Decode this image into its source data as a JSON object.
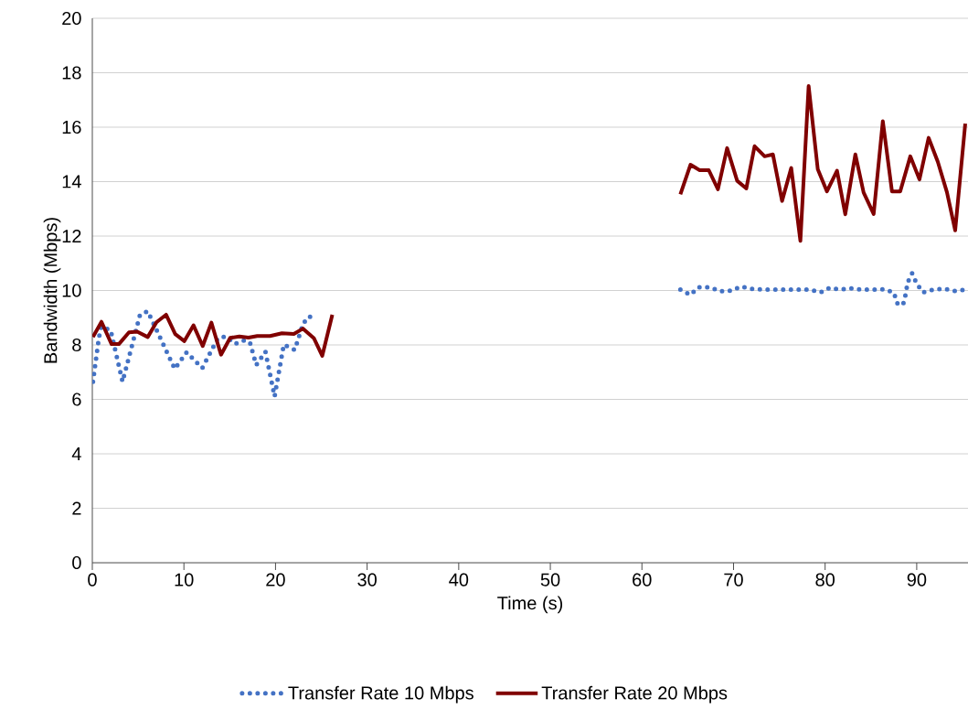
{
  "chart_data": {
    "type": "line",
    "xlabel": "Time (s)",
    "ylabel": "Bandwidth (Mbps)",
    "xlim": [
      0,
      95.6
    ],
    "ylim": [
      0,
      20
    ],
    "xticks": [
      0,
      10,
      20,
      30,
      40,
      50,
      60,
      70,
      80,
      90
    ],
    "yticks": [
      0,
      2,
      4,
      6,
      8,
      10,
      12,
      14,
      16,
      18,
      20
    ],
    "grid": "y",
    "legend": "bottom",
    "series": [
      {
        "name": "Transfer Rate 10 Mbps",
        "color": "#4472c4",
        "line_style": "dotted",
        "x": [
          0.07,
          0.73,
          1.0,
          2.0,
          3.3,
          5.2,
          6.05,
          9.0,
          10.3,
          12.0,
          13.7,
          14.6,
          15.6,
          16.5,
          17.2,
          17.9,
          18.9,
          19.9,
          20.9,
          22.1,
          22.9,
          23.4,
          24.4,
          44,
          64.2,
          65.3,
          66.2,
          67.4,
          68.6,
          69.7,
          70.8,
          72.0,
          73.3,
          74.5,
          75.8,
          77.0,
          78.3,
          79.5,
          80.5,
          81.6,
          82.8,
          84.0,
          85.3,
          86.5,
          87.5,
          87.9,
          88.5,
          88.8,
          89.0,
          89.5,
          90.0,
          90.7,
          91.8,
          93.0,
          94.2,
          95.4
        ],
        "values": [
          6.65,
          8.29,
          8.68,
          8.54,
          6.65,
          9.1,
          9.24,
          7.12,
          7.73,
          7.15,
          8.24,
          8.31,
          8.04,
          8.16,
          8.1,
          7.26,
          7.75,
          6.11,
          8.01,
          7.82,
          8.66,
          9.0,
          9.1,
          null,
          10.03,
          9.84,
          10.12,
          10.12,
          9.97,
          9.99,
          10.14,
          10.06,
          10.03,
          10.03,
          10.03,
          10.03,
          10.03,
          9.93,
          10.1,
          10.03,
          10.08,
          10.03,
          10.03,
          10.04,
          9.92,
          9.52,
          9.47,
          9.87,
          10.29,
          10.63,
          10.25,
          9.93,
          10.03,
          10.06,
          9.98,
          10.03
        ]
      },
      {
        "name": "Transfer Rate 20 Mbps",
        "color": "#800000",
        "line_style": "solid",
        "x": [
          0.07,
          1.0,
          2.1,
          2.9,
          4.0,
          4.9,
          6.05,
          7.0,
          8.05,
          9.05,
          10.05,
          11.05,
          12.05,
          13.0,
          14.05,
          15.05,
          16.05,
          17.05,
          18.0,
          19.4,
          20.7,
          22.0,
          23.0,
          24.2,
          25.1,
          26.2,
          45,
          64.2,
          65.3,
          66.3,
          67.3,
          68.3,
          69.3,
          70.4,
          71.4,
          72.3,
          73.4,
          74.3,
          75.3,
          76.3,
          77.3,
          78.2,
          79.2,
          80.2,
          81.3,
          82.2,
          83.3,
          84.2,
          85.3,
          86.3,
          87.3,
          88.2,
          89.3,
          90.3,
          91.3,
          92.3,
          93.3,
          94.2,
          95.3
        ],
        "values": [
          8.29,
          8.85,
          8.03,
          8.03,
          8.46,
          8.49,
          8.29,
          8.83,
          9.11,
          8.4,
          8.14,
          8.72,
          7.96,
          8.82,
          7.64,
          8.26,
          8.31,
          8.27,
          8.33,
          8.33,
          8.43,
          8.4,
          8.6,
          8.24,
          7.6,
          9.11,
          null,
          13.53,
          14.62,
          14.42,
          14.42,
          13.72,
          15.23,
          14.03,
          13.75,
          15.3,
          14.93,
          15.0,
          13.29,
          14.5,
          11.82,
          17.51,
          14.45,
          13.64,
          14.4,
          12.8,
          15.0,
          13.6,
          12.81,
          16.22,
          13.64,
          13.64,
          14.93,
          14.08,
          15.61,
          14.73,
          13.61,
          12.21,
          16.13
        ]
      }
    ]
  }
}
